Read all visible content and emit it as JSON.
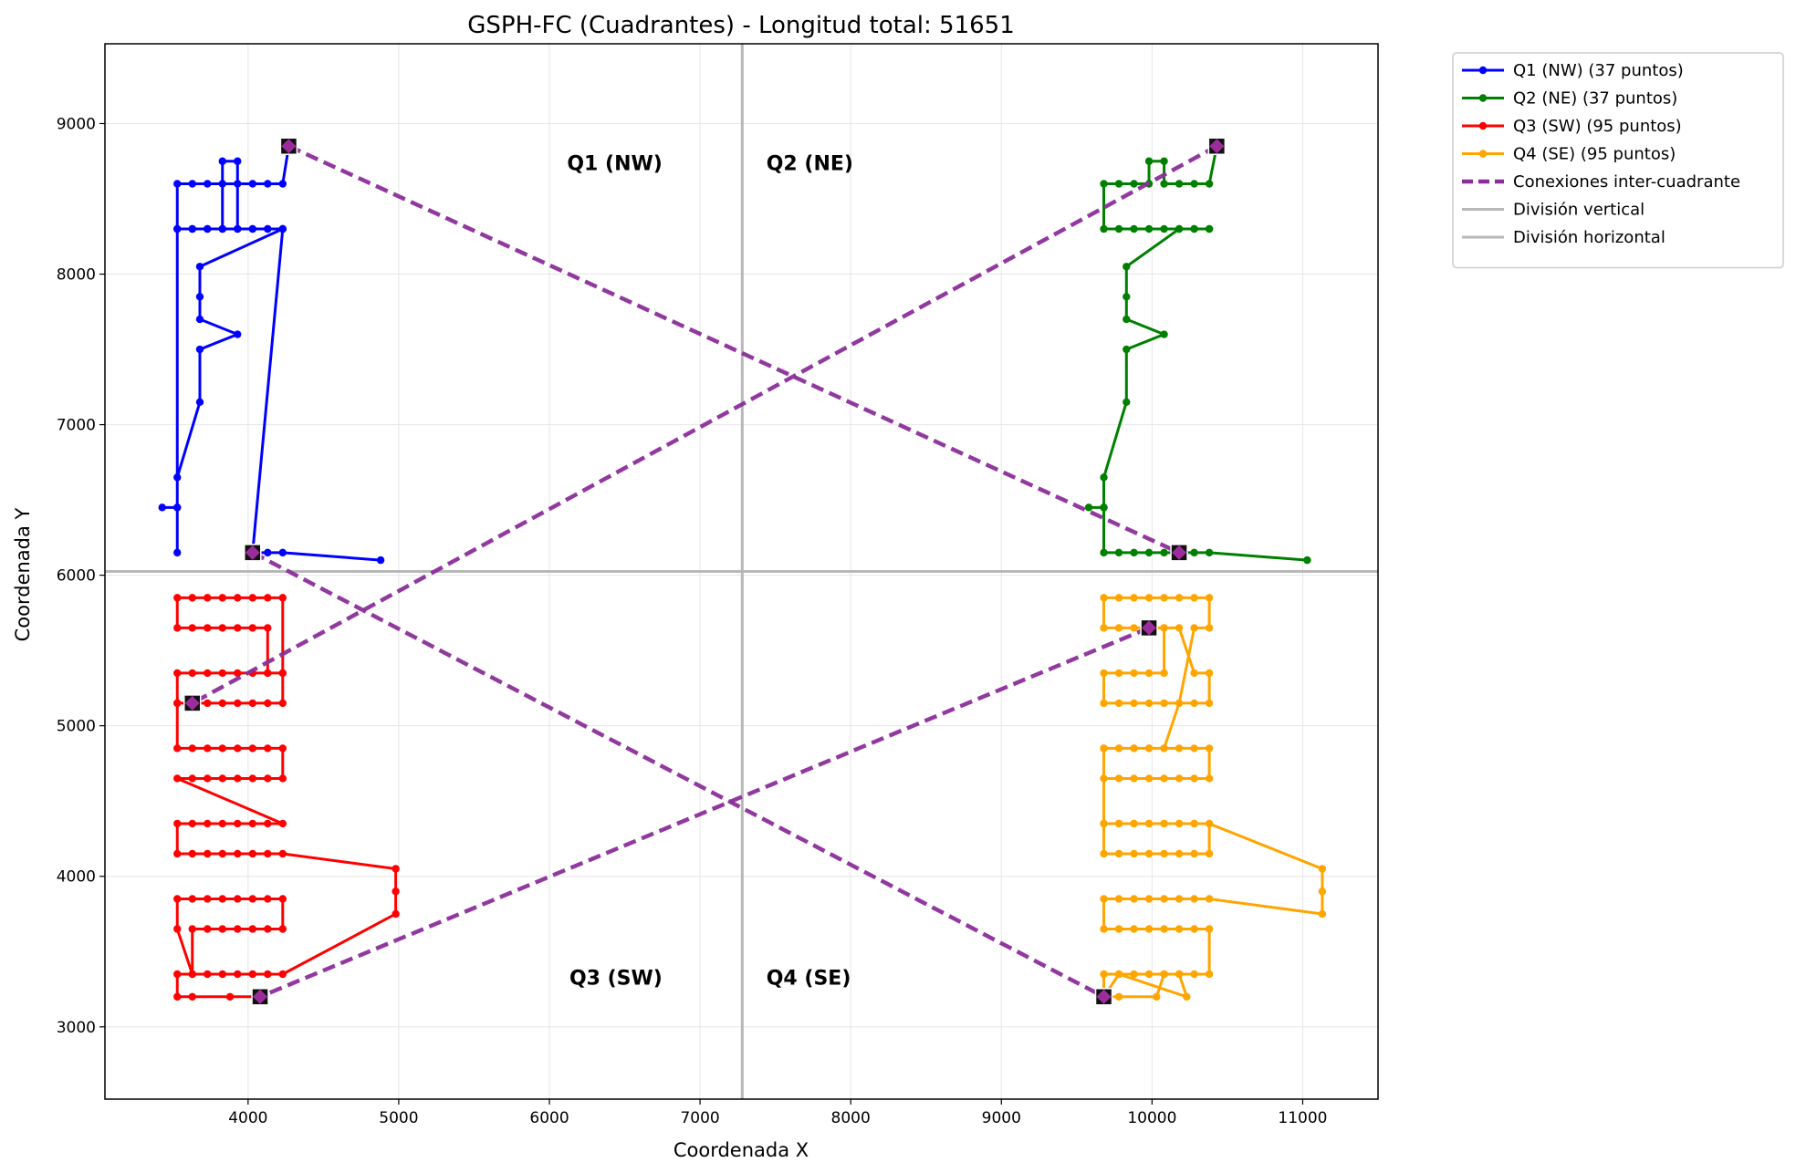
{
  "chart_data": {
    "type": "line",
    "title": "GSPH-FC (Cuadrantes) - Longitud total: 51651",
    "xlabel": "Coordenada X",
    "ylabel": "Coordenada Y",
    "xlim": [
      3050,
      11500
    ],
    "ylim": [
      2520,
      9530
    ],
    "xticks": [
      4000,
      5000,
      6000,
      7000,
      8000,
      9000,
      10000,
      11000
    ],
    "yticks": [
      3000,
      4000,
      5000,
      6000,
      7000,
      8000,
      9000
    ],
    "grid": true,
    "legend_position": "outside-top-right",
    "divider_x": 7280,
    "divider_y": 6025,
    "quadrant_labels": [
      {
        "text": "Q1 (NW)",
        "x": 6750,
        "y": 8740,
        "anchor": "end"
      },
      {
        "text": "Q2 (NE)",
        "x": 7440,
        "y": 8740,
        "anchor": "start"
      },
      {
        "text": "Q3 (SW)",
        "x": 6750,
        "y": 3330,
        "anchor": "end"
      },
      {
        "text": "Q4 (SE)",
        "x": 7440,
        "y": 3330,
        "anchor": "start"
      }
    ],
    "series": [
      {
        "name": "Q1 (NW) (37 puntos)",
        "color": "#0000ff",
        "x": [
          4270,
          4230,
          4130,
          4030,
          3930,
          3830,
          3730,
          3630,
          3530,
          3530,
          3630,
          3730,
          3830,
          3830,
          3930,
          3930,
          4030,
          4130,
          4230,
          4230,
          4130,
          4030,
          3930,
          3830,
          3730,
          3630,
          3530,
          3530,
          3530,
          3430,
          3530,
          3530,
          3680,
          3680,
          3930,
          3680,
          3680,
          3680,
          4230,
          4030,
          4130,
          4230,
          4880
        ],
        "y": [
          8850,
          8600,
          8600,
          8600,
          8600,
          8600,
          8600,
          8600,
          8600,
          8300,
          8300,
          8300,
          8300,
          8750,
          8750,
          8300,
          8300,
          8300,
          8300,
          8300,
          8300,
          8300,
          8300,
          8300,
          8300,
          8300,
          8300,
          6150,
          6450,
          6450,
          6450,
          6650,
          7150,
          7500,
          7600,
          7700,
          7850,
          8050,
          8300,
          6150,
          6150,
          6150,
          6100
        ]
      },
      {
        "name": "Q2 (NE)",
        "legend": "Q2 (NE) (37 puntos)",
        "color": "#008000",
        "x": [
          10430,
          10380,
          10280,
          10180,
          10080,
          10080,
          9980,
          9980,
          9880,
          9780,
          9680,
          9680,
          9780,
          9880,
          9980,
          10080,
          10180,
          10280,
          10380,
          10380,
          10280,
          10180,
          9830,
          9830,
          9830,
          10080,
          9830,
          9830,
          9680,
          9680,
          9580,
          9680,
          9680,
          9780,
          9880,
          9980,
          10080,
          10180,
          10280,
          10380,
          11030
        ],
        "y": [
          8850,
          8600,
          8600,
          8600,
          8600,
          8750,
          8750,
          8600,
          8600,
          8600,
          8600,
          8300,
          8300,
          8300,
          8300,
          8300,
          8300,
          8300,
          8300,
          8300,
          8300,
          8300,
          8050,
          7850,
          7700,
          7600,
          7500,
          7150,
          6650,
          6450,
          6450,
          6450,
          6150,
          6150,
          6150,
          6150,
          6150,
          6150,
          6150,
          6150,
          6100
        ]
      },
      {
        "name": "Q3 (SW) (95 puntos)",
        "color": "#ff0000",
        "x": [
          3630,
          3530,
          3530,
          3630,
          3730,
          3830,
          3930,
          4030,
          4130,
          4230,
          4230,
          4130,
          4030,
          3930,
          3830,
          3730,
          3630,
          3530,
          3530,
          3630,
          3730,
          3830,
          3930,
          4030,
          4130,
          4130,
          4230,
          4230,
          4130,
          4030,
          3930,
          3830,
          3730,
          3630,
          3530,
          3530,
          3630,
          3730,
          3830,
          3930,
          4030,
          4130,
          4230,
          4230,
          4130,
          4030,
          3930,
          3830,
          3730,
          3630,
          3530,
          4230,
          4130,
          4030,
          3930,
          3830,
          3730,
          3630,
          3530,
          3530,
          3630,
          3730,
          3830,
          3930,
          4030,
          4130,
          4230,
          4980,
          4980,
          4980,
          4230,
          4130,
          4030,
          3930,
          3830,
          3730,
          3630,
          3530,
          3530,
          3630,
          3730,
          3830,
          3930,
          4030,
          4130,
          4230,
          4230,
          4130,
          4030,
          3930,
          3830,
          3730,
          3630,
          3630,
          3530,
          3530,
          3630,
          3880,
          4080
        ],
        "y": [
          5150,
          5150,
          5350,
          5350,
          5350,
          5350,
          5350,
          5350,
          5350,
          5350,
          5850,
          5850,
          5850,
          5850,
          5850,
          5850,
          5850,
          5850,
          5650,
          5650,
          5650,
          5650,
          5650,
          5650,
          5650,
          5350,
          5350,
          5150,
          5150,
          5150,
          5150,
          5150,
          5150,
          5150,
          5150,
          4850,
          4850,
          4850,
          4850,
          4850,
          4850,
          4850,
          4850,
          4650,
          4650,
          4650,
          4650,
          4650,
          4650,
          4650,
          4650,
          4350,
          4350,
          4350,
          4350,
          4350,
          4350,
          4350,
          4350,
          4150,
          4150,
          4150,
          4150,
          4150,
          4150,
          4150,
          4150,
          4050,
          3900,
          3750,
          3350,
          3350,
          3350,
          3350,
          3350,
          3350,
          3350,
          3650,
          3850,
          3850,
          3850,
          3850,
          3850,
          3850,
          3850,
          3850,
          3650,
          3650,
          3650,
          3650,
          3650,
          3650,
          3650,
          3350,
          3350,
          3200,
          3200,
          3200,
          3200
        ]
      },
      {
        "name": "Q4 (SE) (95 puntos)",
        "color": "#ffa500",
        "x": [
          9980,
          10080,
          10080,
          9980,
          9880,
          9780,
          9680,
          9680,
          9780,
          9880,
          9980,
          10080,
          10180,
          10280,
          10380,
          10380,
          10280,
          10180,
          10080,
          9980,
          9880,
          9780,
          9680,
          9680,
          9780,
          9880,
          9980,
          10080,
          10180,
          10280,
          10380,
          10380,
          10280,
          10180,
          10080,
          9980,
          9880,
          9780,
          9680,
          9680,
          9780,
          9880,
          9980,
          10080,
          10180,
          10280,
          10380,
          10380,
          10280,
          10180,
          10080,
          9980,
          9880,
          9780,
          9680,
          9680,
          9780,
          9880,
          9980,
          10080,
          10180,
          10280,
          10380,
          10380,
          10280,
          10180,
          10080,
          9980,
          9880,
          9780,
          9680,
          9680,
          9780,
          9880,
          9980,
          10080,
          10180,
          10280,
          10380,
          11130,
          11130,
          11130,
          10380,
          10280,
          10180,
          10080,
          9980,
          9880,
          9780,
          9680,
          9680,
          9780,
          9880,
          9980,
          10080,
          10180,
          10280,
          10380,
          10380,
          10280,
          10180,
          10080,
          9980,
          9880,
          9780,
          9680,
          9680,
          9780,
          10030,
          10080,
          10180,
          10230,
          9780,
          9680
        ],
        "y": [
          5650,
          5650,
          5350,
          5350,
          5350,
          5350,
          5350,
          5150,
          5150,
          5150,
          5150,
          5150,
          5150,
          5150,
          5150,
          5350,
          5350,
          5650,
          5650,
          5650,
          5650,
          5650,
          5650,
          5850,
          5850,
          5850,
          5850,
          5850,
          5850,
          5850,
          5850,
          5650,
          5650,
          5150,
          4850,
          4850,
          4850,
          4850,
          4850,
          4650,
          4650,
          4650,
          4650,
          4650,
          4650,
          4650,
          4650,
          4850,
          4850,
          4850,
          4850,
          4850,
          4850,
          4850,
          4850,
          4350,
          4350,
          4350,
          4350,
          4350,
          4350,
          4350,
          4350,
          4150,
          4150,
          4150,
          4150,
          4150,
          4150,
          4150,
          4150,
          4350,
          4350,
          4350,
          4350,
          4350,
          4350,
          4350,
          4350,
          4050,
          3900,
          3750,
          3850,
          3850,
          3850,
          3850,
          3850,
          3850,
          3850,
          3850,
          3650,
          3650,
          3650,
          3650,
          3650,
          3650,
          3650,
          3650,
          3350,
          3350,
          3350,
          3350,
          3350,
          3350,
          3350,
          3350,
          3200,
          3200,
          3200,
          3350,
          3350,
          3200,
          3350,
          3200
        ]
      },
      {
        "name": "Conexiones inter-cuadrante",
        "color": "#8b2e9a",
        "dashed": true,
        "segments": [
          {
            "x": [
              4270,
              10180
            ],
            "y": [
              8850,
              6150
            ]
          },
          {
            "x": [
              10430,
              3630
            ],
            "y": [
              8850,
              5150
            ]
          },
          {
            "x": [
              4030,
              9680
            ],
            "y": [
              6150,
              3200
            ]
          },
          {
            "x": [
              9980,
              4080
            ],
            "y": [
              5650,
              3200
            ]
          }
        ]
      }
    ],
    "markers": [
      {
        "x": 4270,
        "y": 8850
      },
      {
        "x": 4030,
        "y": 6150
      },
      {
        "x": 10430,
        "y": 8850
      },
      {
        "x": 10180,
        "y": 6150
      },
      {
        "x": 3630,
        "y": 5150
      },
      {
        "x": 4080,
        "y": 3200
      },
      {
        "x": 9980,
        "y": 5650
      },
      {
        "x": 9680,
        "y": 3200
      }
    ],
    "legend": [
      {
        "label": "Q1 (NW) (37 puntos)",
        "color": "#0000ff",
        "style": "line-marker"
      },
      {
        "label": "Q2 (NE) (37 puntos)",
        "color": "#008000",
        "style": "line-marker"
      },
      {
        "label": "Q3 (SW) (95 puntos)",
        "color": "#ff0000",
        "style": "line-marker"
      },
      {
        "label": "Q4 (SE) (95 puntos)",
        "color": "#ffa500",
        "style": "line-marker"
      },
      {
        "label": "Conexiones inter-cuadrante",
        "color": "#8b2e9a",
        "style": "dashed"
      },
      {
        "label": "División vertical",
        "color": "#b8b8b8",
        "style": "line"
      },
      {
        "label": "División horizontal",
        "color": "#b8b8b8",
        "style": "line"
      }
    ]
  }
}
